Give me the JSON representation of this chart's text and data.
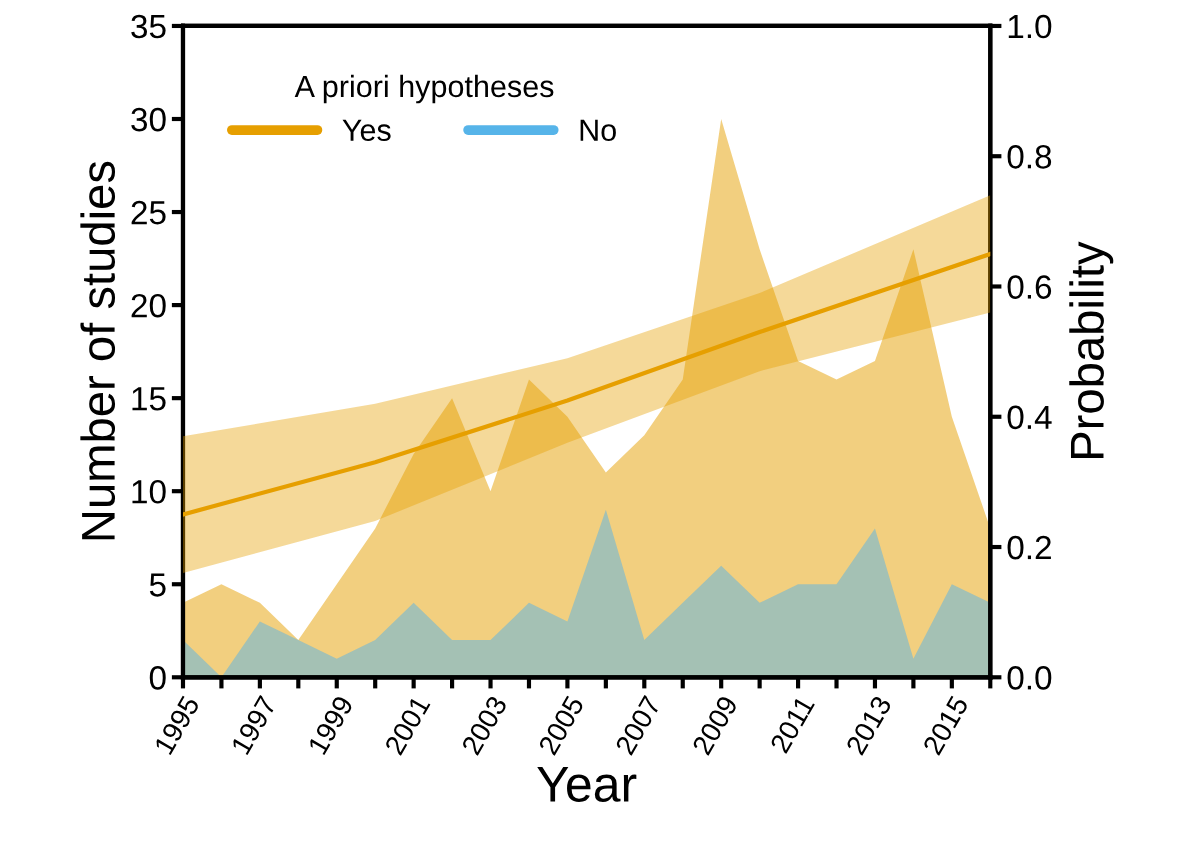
{
  "chart_data": {
    "type": "area",
    "xlabel": "Year",
    "ylabel": "Number of studies",
    "y2label": "Probability",
    "legend_title": "A priori hypotheses",
    "legend": "top left",
    "grid": false,
    "x": [
      1995,
      1996,
      1997,
      1998,
      1999,
      2000,
      2001,
      2002,
      2003,
      2004,
      2005,
      2006,
      2007,
      2008,
      2009,
      2010,
      2011,
      2012,
      2013,
      2014,
      2015,
      2016
    ],
    "series": [
      {
        "name": "Yes",
        "color": "#e69f00",
        "values": [
          4,
          5,
          4,
          2,
          5,
          8,
          12,
          15,
          10,
          16,
          14,
          11,
          13,
          16,
          30,
          23,
          17,
          16,
          17,
          23,
          14,
          8
        ]
      },
      {
        "name": "No",
        "color": "#56b4e9",
        "values": [
          2,
          0,
          3,
          2,
          1,
          2,
          4,
          2,
          2,
          4,
          3,
          9,
          2,
          4,
          6,
          4,
          5,
          5,
          8,
          1,
          5,
          4
        ]
      },
      {
        "type": "line",
        "axis": "y2",
        "color": "#e69f00",
        "x": [
          1995,
          2000,
          2005,
          2010,
          2016
        ],
        "values": [
          0.25,
          0.33,
          0.425,
          0.53,
          0.65
        ],
        "lower": [
          0.16,
          0.24,
          0.36,
          0.47,
          0.56
        ],
        "upper": [
          0.37,
          0.42,
          0.49,
          0.59,
          0.74
        ]
      }
    ],
    "xlim": [
      1995,
      2016
    ],
    "xticks": [
      1995,
      {
        "value": 1996,
        "label": null
      },
      1997,
      {
        "value": 1998,
        "label": null
      },
      1999,
      {
        "value": 2000,
        "label": null
      },
      2001,
      {
        "value": 2002,
        "label": null
      },
      2003,
      {
        "value": 2004,
        "label": null
      },
      2005,
      {
        "value": 2006,
        "label": null
      },
      2007,
      {
        "value": 2008,
        "label": null
      },
      2009,
      {
        "value": 2010,
        "label": null
      },
      2011,
      {
        "value": 2012,
        "label": null
      },
      2013,
      {
        "value": 2014,
        "label": null
      },
      2015,
      {
        "value": 2016,
        "label": null
      }
    ],
    "ylim": [
      0,
      35
    ],
    "yticks": [
      0,
      5,
      10,
      15,
      20,
      25,
      30,
      35
    ],
    "y2lim": [
      0,
      1
    ],
    "y2ticks": [
      {
        "value": 0,
        "label": "0.0"
      },
      {
        "value": 0.2,
        "label": "0.2"
      },
      {
        "value": 0.4,
        "label": "0.4"
      },
      {
        "value": 0.6,
        "label": "0.6"
      },
      {
        "value": 0.8,
        "label": "0.8"
      },
      {
        "value": 1,
        "label": "1.0"
      }
    ]
  }
}
